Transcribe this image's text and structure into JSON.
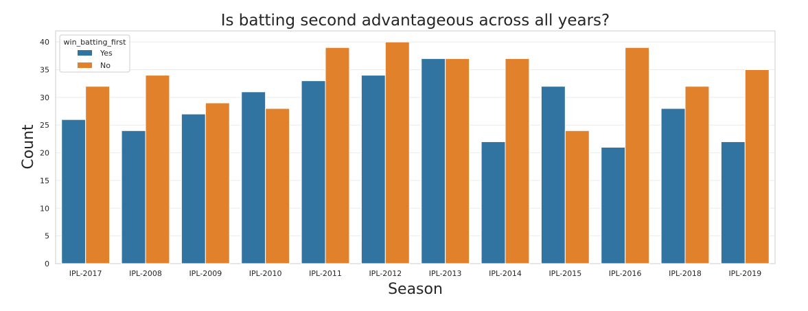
{
  "chart_data": {
    "type": "bar",
    "title": "Is batting second advantageous across all years?",
    "xlabel": "Season",
    "ylabel": "Count",
    "categories": [
      "IPL-2017",
      "IPL-2008",
      "IPL-2009",
      "IPL-2010",
      "IPL-2011",
      "IPL-2012",
      "IPL-2013",
      "IPL-2014",
      "IPL-2015",
      "IPL-2016",
      "IPL-2018",
      "IPL-2019"
    ],
    "series": [
      {
        "name": "Yes",
        "color": "#3274a1",
        "values": [
          26,
          24,
          27,
          31,
          33,
          34,
          37,
          22,
          32,
          21,
          28,
          22
        ]
      },
      {
        "name": "No",
        "color": "#e1812c",
        "values": [
          32,
          34,
          29,
          28,
          39,
          40,
          37,
          37,
          24,
          39,
          32,
          35
        ]
      }
    ],
    "ylim": [
      0,
      42
    ],
    "yticks": [
      0,
      5,
      10,
      15,
      20,
      25,
      30,
      35,
      40
    ],
    "legend": {
      "title": "win_batting_first",
      "position": "top-left"
    },
    "grid": "horizontal"
  }
}
